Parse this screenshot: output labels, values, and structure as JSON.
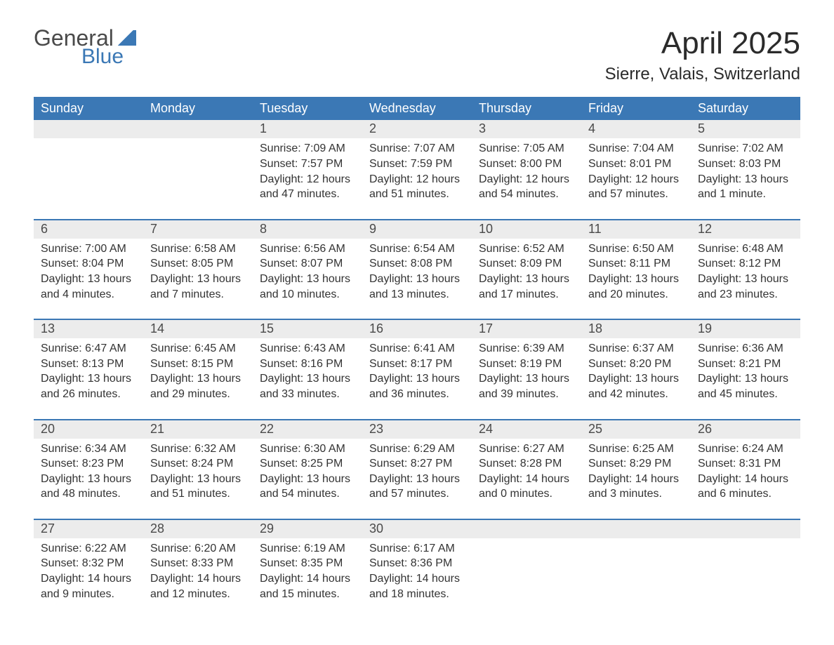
{
  "brand": {
    "top": "General",
    "bottom": "Blue"
  },
  "title": "April 2025",
  "location": "Sierre, Valais, Switzerland",
  "colors": {
    "primary": "#3b78b5",
    "header_text": "#ffffff",
    "daynum_bg": "#ececec",
    "body_text": "#333333",
    "background": "#ffffff"
  },
  "weekdays": [
    "Sunday",
    "Monday",
    "Tuesday",
    "Wednesday",
    "Thursday",
    "Friday",
    "Saturday"
  ],
  "weeks": [
    [
      {
        "n": "",
        "sunrise": "",
        "sunset": "",
        "daylight": ""
      },
      {
        "n": "",
        "sunrise": "",
        "sunset": "",
        "daylight": ""
      },
      {
        "n": "1",
        "sunrise": "Sunrise: 7:09 AM",
        "sunset": "Sunset: 7:57 PM",
        "daylight": "Daylight: 12 hours and 47 minutes."
      },
      {
        "n": "2",
        "sunrise": "Sunrise: 7:07 AM",
        "sunset": "Sunset: 7:59 PM",
        "daylight": "Daylight: 12 hours and 51 minutes."
      },
      {
        "n": "3",
        "sunrise": "Sunrise: 7:05 AM",
        "sunset": "Sunset: 8:00 PM",
        "daylight": "Daylight: 12 hours and 54 minutes."
      },
      {
        "n": "4",
        "sunrise": "Sunrise: 7:04 AM",
        "sunset": "Sunset: 8:01 PM",
        "daylight": "Daylight: 12 hours and 57 minutes."
      },
      {
        "n": "5",
        "sunrise": "Sunrise: 7:02 AM",
        "sunset": "Sunset: 8:03 PM",
        "daylight": "Daylight: 13 hours and 1 minute."
      }
    ],
    [
      {
        "n": "6",
        "sunrise": "Sunrise: 7:00 AM",
        "sunset": "Sunset: 8:04 PM",
        "daylight": "Daylight: 13 hours and 4 minutes."
      },
      {
        "n": "7",
        "sunrise": "Sunrise: 6:58 AM",
        "sunset": "Sunset: 8:05 PM",
        "daylight": "Daylight: 13 hours and 7 minutes."
      },
      {
        "n": "8",
        "sunrise": "Sunrise: 6:56 AM",
        "sunset": "Sunset: 8:07 PM",
        "daylight": "Daylight: 13 hours and 10 minutes."
      },
      {
        "n": "9",
        "sunrise": "Sunrise: 6:54 AM",
        "sunset": "Sunset: 8:08 PM",
        "daylight": "Daylight: 13 hours and 13 minutes."
      },
      {
        "n": "10",
        "sunrise": "Sunrise: 6:52 AM",
        "sunset": "Sunset: 8:09 PM",
        "daylight": "Daylight: 13 hours and 17 minutes."
      },
      {
        "n": "11",
        "sunrise": "Sunrise: 6:50 AM",
        "sunset": "Sunset: 8:11 PM",
        "daylight": "Daylight: 13 hours and 20 minutes."
      },
      {
        "n": "12",
        "sunrise": "Sunrise: 6:48 AM",
        "sunset": "Sunset: 8:12 PM",
        "daylight": "Daylight: 13 hours and 23 minutes."
      }
    ],
    [
      {
        "n": "13",
        "sunrise": "Sunrise: 6:47 AM",
        "sunset": "Sunset: 8:13 PM",
        "daylight": "Daylight: 13 hours and 26 minutes."
      },
      {
        "n": "14",
        "sunrise": "Sunrise: 6:45 AM",
        "sunset": "Sunset: 8:15 PM",
        "daylight": "Daylight: 13 hours and 29 minutes."
      },
      {
        "n": "15",
        "sunrise": "Sunrise: 6:43 AM",
        "sunset": "Sunset: 8:16 PM",
        "daylight": "Daylight: 13 hours and 33 minutes."
      },
      {
        "n": "16",
        "sunrise": "Sunrise: 6:41 AM",
        "sunset": "Sunset: 8:17 PM",
        "daylight": "Daylight: 13 hours and 36 minutes."
      },
      {
        "n": "17",
        "sunrise": "Sunrise: 6:39 AM",
        "sunset": "Sunset: 8:19 PM",
        "daylight": "Daylight: 13 hours and 39 minutes."
      },
      {
        "n": "18",
        "sunrise": "Sunrise: 6:37 AM",
        "sunset": "Sunset: 8:20 PM",
        "daylight": "Daylight: 13 hours and 42 minutes."
      },
      {
        "n": "19",
        "sunrise": "Sunrise: 6:36 AM",
        "sunset": "Sunset: 8:21 PM",
        "daylight": "Daylight: 13 hours and 45 minutes."
      }
    ],
    [
      {
        "n": "20",
        "sunrise": "Sunrise: 6:34 AM",
        "sunset": "Sunset: 8:23 PM",
        "daylight": "Daylight: 13 hours and 48 minutes."
      },
      {
        "n": "21",
        "sunrise": "Sunrise: 6:32 AM",
        "sunset": "Sunset: 8:24 PM",
        "daylight": "Daylight: 13 hours and 51 minutes."
      },
      {
        "n": "22",
        "sunrise": "Sunrise: 6:30 AM",
        "sunset": "Sunset: 8:25 PM",
        "daylight": "Daylight: 13 hours and 54 minutes."
      },
      {
        "n": "23",
        "sunrise": "Sunrise: 6:29 AM",
        "sunset": "Sunset: 8:27 PM",
        "daylight": "Daylight: 13 hours and 57 minutes."
      },
      {
        "n": "24",
        "sunrise": "Sunrise: 6:27 AM",
        "sunset": "Sunset: 8:28 PM",
        "daylight": "Daylight: 14 hours and 0 minutes."
      },
      {
        "n": "25",
        "sunrise": "Sunrise: 6:25 AM",
        "sunset": "Sunset: 8:29 PM",
        "daylight": "Daylight: 14 hours and 3 minutes."
      },
      {
        "n": "26",
        "sunrise": "Sunrise: 6:24 AM",
        "sunset": "Sunset: 8:31 PM",
        "daylight": "Daylight: 14 hours and 6 minutes."
      }
    ],
    [
      {
        "n": "27",
        "sunrise": "Sunrise: 6:22 AM",
        "sunset": "Sunset: 8:32 PM",
        "daylight": "Daylight: 14 hours and 9 minutes."
      },
      {
        "n": "28",
        "sunrise": "Sunrise: 6:20 AM",
        "sunset": "Sunset: 8:33 PM",
        "daylight": "Daylight: 14 hours and 12 minutes."
      },
      {
        "n": "29",
        "sunrise": "Sunrise: 6:19 AM",
        "sunset": "Sunset: 8:35 PM",
        "daylight": "Daylight: 14 hours and 15 minutes."
      },
      {
        "n": "30",
        "sunrise": "Sunrise: 6:17 AM",
        "sunset": "Sunset: 8:36 PM",
        "daylight": "Daylight: 14 hours and 18 minutes."
      },
      {
        "n": "",
        "sunrise": "",
        "sunset": "",
        "daylight": ""
      },
      {
        "n": "",
        "sunrise": "",
        "sunset": "",
        "daylight": ""
      },
      {
        "n": "",
        "sunrise": "",
        "sunset": "",
        "daylight": ""
      }
    ]
  ]
}
